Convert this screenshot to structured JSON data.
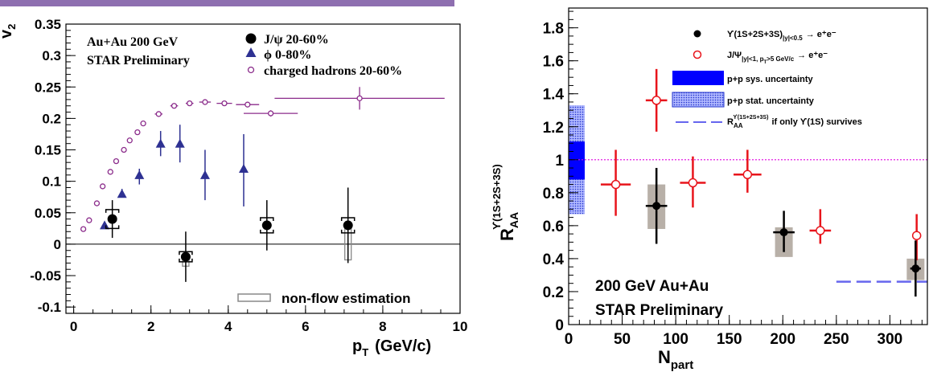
{
  "header_bar_color": "#8e6fb0",
  "chart_data": [
    {
      "type": "scatter",
      "title": "",
      "xlabel_main": "p",
      "xlabel_sub": "T",
      "xlabel_unit": "(GeV/c)",
      "ylabel_main": "v",
      "ylabel_sub": "2",
      "xlim": [
        -0.2,
        10
      ],
      "ylim": [
        -0.11,
        0.35
      ],
      "xticks": [
        0,
        2,
        4,
        6,
        8,
        10
      ],
      "yticks": [
        -0.1,
        -0.05,
        0,
        0.05,
        0.1,
        0.15,
        0.2,
        0.25,
        0.3,
        0.35
      ],
      "ytick_labels": [
        "-0.1",
        "-0.05",
        "0",
        "0.05",
        "0.1",
        "0.15",
        "0.2",
        "0.25",
        "0.3",
        "0.35"
      ],
      "annotations": [
        "Au+Au 200 GeV",
        "STAR Preliminary"
      ],
      "legend": [
        "J/ψ 20-60%",
        "ϕ 0-80%",
        "charged hadrons 20-60%"
      ],
      "nonflow_label": "non-flow estimation",
      "colors": {
        "jpsi": "#000000",
        "phi": "#2e3192",
        "hadrons": "#8b2c8b"
      },
      "series": [
        {
          "name": "J/ψ 20-60%",
          "marker": "filled-circle",
          "points": [
            {
              "x": 1.0,
              "y": 0.04,
              "ylo": 0.01,
              "yhi": 0.07,
              "xerr": 0.0,
              "sys": 0.015,
              "nonflow": 0.0
            },
            {
              "x": 2.9,
              "y": -0.02,
              "ylo": -0.06,
              "yhi": 0.02,
              "xerr": 0.0,
              "sys": 0.008,
              "nonflow": -0.015
            },
            {
              "x": 5.0,
              "y": 0.03,
              "ylo": -0.01,
              "yhi": 0.07,
              "xerr": 0.0,
              "sys": 0.012,
              "nonflow": 0.0
            },
            {
              "x": 7.1,
              "y": 0.03,
              "ylo": -0.03,
              "yhi": 0.09,
              "xerr": 0.0,
              "sys": 0.012,
              "nonflow": -0.055
            }
          ]
        },
        {
          "name": "ϕ 0-80%",
          "marker": "filled-triangle",
          "points": [
            {
              "x": 0.8,
              "y": 0.03,
              "ylo": 0.025,
              "yhi": 0.035
            },
            {
              "x": 1.25,
              "y": 0.08,
              "ylo": 0.075,
              "yhi": 0.088
            },
            {
              "x": 1.7,
              "y": 0.11,
              "ylo": 0.095,
              "yhi": 0.12
            },
            {
              "x": 2.25,
              "y": 0.16,
              "ylo": 0.14,
              "yhi": 0.18
            },
            {
              "x": 2.75,
              "y": 0.16,
              "ylo": 0.13,
              "yhi": 0.19
            },
            {
              "x": 3.4,
              "y": 0.11,
              "ylo": 0.07,
              "yhi": 0.15
            },
            {
              "x": 4.4,
              "y": 0.12,
              "ylo": 0.06,
              "yhi": 0.175
            }
          ]
        },
        {
          "name": "charged hadrons 20-60%",
          "marker": "open-circle",
          "points": [
            {
              "x": 0.25,
              "y": 0.024,
              "xerr": 0.05,
              "yerr": 0
            },
            {
              "x": 0.4,
              "y": 0.038,
              "xerr": 0.05,
              "yerr": 0
            },
            {
              "x": 0.6,
              "y": 0.065,
              "xerr": 0.05,
              "yerr": 0
            },
            {
              "x": 0.75,
              "y": 0.092,
              "xerr": 0.05,
              "yerr": 0
            },
            {
              "x": 0.95,
              "y": 0.115,
              "xerr": 0.05,
              "yerr": 0
            },
            {
              "x": 1.1,
              "y": 0.132,
              "xerr": 0.05,
              "yerr": 0
            },
            {
              "x": 1.3,
              "y": 0.15,
              "xerr": 0.05,
              "yerr": 0
            },
            {
              "x": 1.45,
              "y": 0.165,
              "xerr": 0.05,
              "yerr": 0
            },
            {
              "x": 1.65,
              "y": 0.178,
              "xerr": 0.05,
              "yerr": 0
            },
            {
              "x": 1.8,
              "y": 0.192,
              "xerr": 0.05,
              "yerr": 0
            },
            {
              "x": 2.2,
              "y": 0.207,
              "xerr": 0.1,
              "yerr": 0
            },
            {
              "x": 2.6,
              "y": 0.22,
              "xerr": 0.1,
              "yerr": 0
            },
            {
              "x": 3.0,
              "y": 0.224,
              "xerr": 0.1,
              "yerr": 0
            },
            {
              "x": 3.4,
              "y": 0.226,
              "xerr": 0.15,
              "yerr": 0
            },
            {
              "x": 3.9,
              "y": 0.224,
              "xerr": 0.2,
              "yerr": 0
            },
            {
              "x": 4.5,
              "y": 0.222,
              "xerr": 0.3,
              "yerr": 0
            },
            {
              "x": 5.1,
              "y": 0.208,
              "xerr": 0.7,
              "yerr": 0.005
            },
            {
              "x": 7.4,
              "y": 0.232,
              "xerr": 2.2,
              "yerr": 0.018
            }
          ]
        }
      ]
    },
    {
      "type": "scatter",
      "title": "",
      "xlabel_main": "N",
      "xlabel_sub": "part",
      "ylabel_main": "R",
      "ylabel_sub": "AA",
      "ylabel_sup": "ϒ(1S+2S+3S)",
      "xlim": [
        0,
        335
      ],
      "ylim": [
        0,
        1.92
      ],
      "xticks": [
        0,
        50,
        100,
        150,
        200,
        250,
        300
      ],
      "yticks": [
        0,
        0.2,
        0.4,
        0.6,
        0.8,
        1,
        1.2,
        1.4,
        1.6,
        1.8
      ],
      "ytick_labels": [
        "0",
        "0.2",
        "0.4",
        "0.6",
        "0.8",
        "1",
        "1.2",
        "1.4",
        "1.6",
        "1.8"
      ],
      "annotations": [
        "200 GeV Au+Au",
        "STAR Preliminary"
      ],
      "reference_line": 1.0,
      "suppression_line": {
        "x": [
          250,
          335
        ],
        "y": 0.26
      },
      "pp_sys_band": {
        "x": [
          0,
          15
        ],
        "y": [
          0.88,
          1.11
        ]
      },
      "pp_stat_band": {
        "x": [
          0,
          15
        ],
        "y": [
          0.67,
          1.33
        ]
      },
      "legend": {
        "upsilon": {
          "main": "ϒ(1S+2S+3S)",
          "sub": "|y|<0.5",
          "tail": "→ e⁺e⁻"
        },
        "jpsi": {
          "main": "J/Ψ",
          "sub": "|y|<1, p",
          "subsub": "T",
          "sub2": ">5 GeV/c",
          "tail": "→ e⁺e⁻"
        },
        "pp_sys": "p+p sys. uncertainty",
        "pp_stat": "p+p stat. uncertainty",
        "line": {
          "main": "R",
          "sub": "AA",
          "sup": "ϒ(1S+2S+3S)",
          "tail": "if only ϒ(1S) survives"
        }
      },
      "colors": {
        "upsilon": "#000000",
        "jpsi": "#e8141b",
        "pp_sys": "#0000ff",
        "reference": "#e000e0",
        "suppression": "#6666ee",
        "sys_box": "#b8b0a8"
      },
      "series": [
        {
          "name": "ϒ(1S+2S+3S)",
          "marker": "filled-circle",
          "points": [
            {
              "x": 82,
              "y": 0.72,
              "ylo": 0.49,
              "yhi": 0.95,
              "xerr": 10,
              "boxlo": 0.58,
              "boxhi": 0.85
            },
            {
              "x": 201,
              "y": 0.56,
              "ylo": 0.44,
              "yhi": 0.69,
              "xerr": 10,
              "boxlo": 0.41,
              "boxhi": 0.59
            },
            {
              "x": 324,
              "y": 0.34,
              "ylo": 0.17,
              "yhi": 0.51,
              "xerr": 5,
              "boxlo": 0.27,
              "boxhi": 0.4
            }
          ]
        },
        {
          "name": "J/Ψ",
          "marker": "open-circle",
          "points": [
            {
              "x": 44,
              "y": 0.85,
              "ylo": 0.66,
              "yhi": 1.06,
              "xerr": 14
            },
            {
              "x": 82,
              "y": 1.36,
              "ylo": 1.17,
              "yhi": 1.55,
              "xerr": 10
            },
            {
              "x": 116,
              "y": 0.86,
              "ylo": 0.71,
              "yhi": 1.02,
              "xerr": 12
            },
            {
              "x": 167,
              "y": 0.91,
              "ylo": 0.8,
              "yhi": 1.06,
              "xerr": 13
            },
            {
              "x": 235,
              "y": 0.57,
              "ylo": 0.49,
              "yhi": 0.7,
              "xerr": 10
            },
            {
              "x": 325,
              "y": 0.54,
              "ylo": 0.39,
              "yhi": 0.67,
              "xerr": 4
            }
          ]
        }
      ]
    }
  ]
}
